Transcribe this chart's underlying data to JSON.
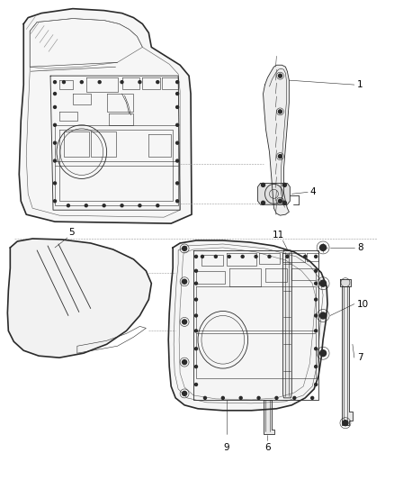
{
  "bg_color": "#ffffff",
  "line_color": "#2a2a2a",
  "dashed_color": "#999999",
  "label_color": "#000000",
  "fig_width": 4.38,
  "fig_height": 5.33,
  "dpi": 100,
  "lw_outer": 1.2,
  "lw_inner": 0.6,
  "lw_thin": 0.4,
  "fs_label": 7.5
}
